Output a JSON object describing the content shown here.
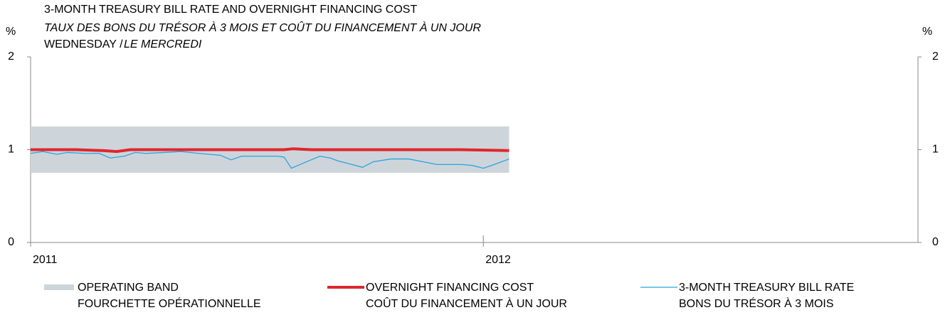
{
  "chart_data": {
    "type": "line",
    "title": "3-MONTH TREASURY BILL RATE AND OVERNIGHT FINANCING COST",
    "subtitle": "TAUX DES BONS DU TRÉSOR À 3 MOIS ET COÛT DU FINANCEMENT À UN JOUR",
    "note": "WEDNESDAY /",
    "note_fr": "LE MERCREDI",
    "ylabel": "%",
    "y2label": "%",
    "xlim": [
      2011,
      2012.96
    ],
    "xticks": [
      2011,
      2012
    ],
    "ylim": [
      0,
      2
    ],
    "yticks": [
      0,
      1,
      2
    ],
    "y2lim": [
      0,
      2
    ],
    "y2ticks": [
      0,
      1,
      2
    ],
    "band": {
      "name": "OPERATING BAND",
      "name_fr": "FOURCHETTE OPÉRATIONNELLE",
      "color": "#cdd5db",
      "x": [
        2011,
        2012.057
      ],
      "low": 0.75,
      "high": 1.25
    },
    "series": [
      {
        "name": "OVERNIGHT FINANCING COST",
        "name_fr": "COÛT DU FINANCEMENT À UN JOUR",
        "color": "#e0262b",
        "x": [
          2011,
          2011.1,
          2011.16,
          2011.19,
          2011.22,
          2011.4,
          2011.56,
          2011.58,
          2011.62,
          2011.8,
          2011.95,
          2012.057
        ],
        "values": [
          1.0,
          1.0,
          0.99,
          0.98,
          1.0,
          1.0,
          1.0,
          1.01,
          1.0,
          1.0,
          1.0,
          0.99
        ]
      },
      {
        "name": "3-MONTH TREASURY BILL RATE",
        "name_fr": "BONS DU TRÉSOR À 3 MOIS",
        "color": "#2aa3dc",
        "x": [
          2011,
          2011.027,
          2011.058,
          2011.082,
          2011.121,
          2011.152,
          2011.176,
          2011.207,
          2011.231,
          2011.254,
          2011.294,
          2011.333,
          2011.372,
          2011.419,
          2011.443,
          2011.466,
          2011.498,
          2011.545,
          2011.56,
          2011.576,
          2011.6,
          2011.639,
          2011.662,
          2011.678,
          2011.71,
          2011.733,
          2011.757,
          2011.796,
          2011.835,
          2011.867,
          2011.898,
          2011.922,
          2011.953,
          2011.976,
          2012.0,
          2012.024,
          2012.057
        ],
        "values": [
          0.96,
          0.98,
          0.95,
          0.97,
          0.96,
          0.96,
          0.91,
          0.93,
          0.97,
          0.96,
          0.97,
          0.98,
          0.96,
          0.94,
          0.89,
          0.93,
          0.93,
          0.93,
          0.92,
          0.8,
          0.85,
          0.93,
          0.91,
          0.88,
          0.84,
          0.81,
          0.87,
          0.9,
          0.9,
          0.87,
          0.84,
          0.84,
          0.84,
          0.83,
          0.8,
          0.84,
          0.9
        ]
      }
    ]
  }
}
